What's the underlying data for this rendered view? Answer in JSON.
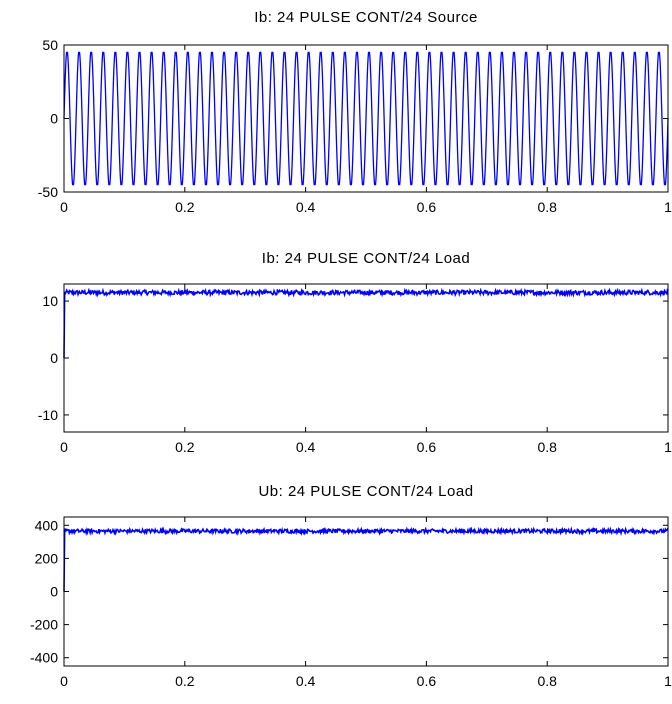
{
  "chart_data": [
    {
      "type": "line",
      "title": "Ib: 24 PULSE CONT/24 Source",
      "xlabel": "",
      "ylabel": "",
      "xlim": [
        0,
        1
      ],
      "ylim": [
        -50,
        50
      ],
      "x_ticks": [
        "0",
        "0.2",
        "0.4",
        "0.6",
        "0.8",
        "1"
      ],
      "y_ticks": [
        "50",
        "0",
        "-50"
      ],
      "color": "#0000ff",
      "series": [
        {
          "waveform": "sinusoid",
          "amplitude": 45,
          "frequency_hz": 50,
          "offset": 0
        }
      ]
    },
    {
      "type": "line",
      "title": "Ib: 24 PULSE CONT/24 Load",
      "xlabel": "",
      "ylabel": "",
      "xlim": [
        0,
        1
      ],
      "ylim": [
        -13,
        13
      ],
      "x_ticks": [
        "0",
        "0.2",
        "0.4",
        "0.6",
        "0.8",
        "1"
      ],
      "y_ticks": [
        "10",
        "0",
        "-10"
      ],
      "color": "#0000ff",
      "series": [
        {
          "waveform": "dc-ripple",
          "start_value": 0,
          "level": 11.5,
          "ripple": 0.4
        }
      ]
    },
    {
      "type": "line",
      "title": "Ub: 24 PULSE CONT/24 Load",
      "xlabel": "",
      "ylabel": "",
      "xlim": [
        0,
        1
      ],
      "ylim": [
        -450,
        450
      ],
      "x_ticks": [
        "0",
        "0.2",
        "0.4",
        "0.6",
        "0.8",
        "1"
      ],
      "y_ticks": [
        "400",
        "200",
        "0",
        "-200",
        "-400"
      ],
      "color": "#0000ff",
      "series": [
        {
          "waveform": "dc-ripple",
          "start_value": 0,
          "level": 365,
          "ripple": 12
        }
      ]
    }
  ]
}
